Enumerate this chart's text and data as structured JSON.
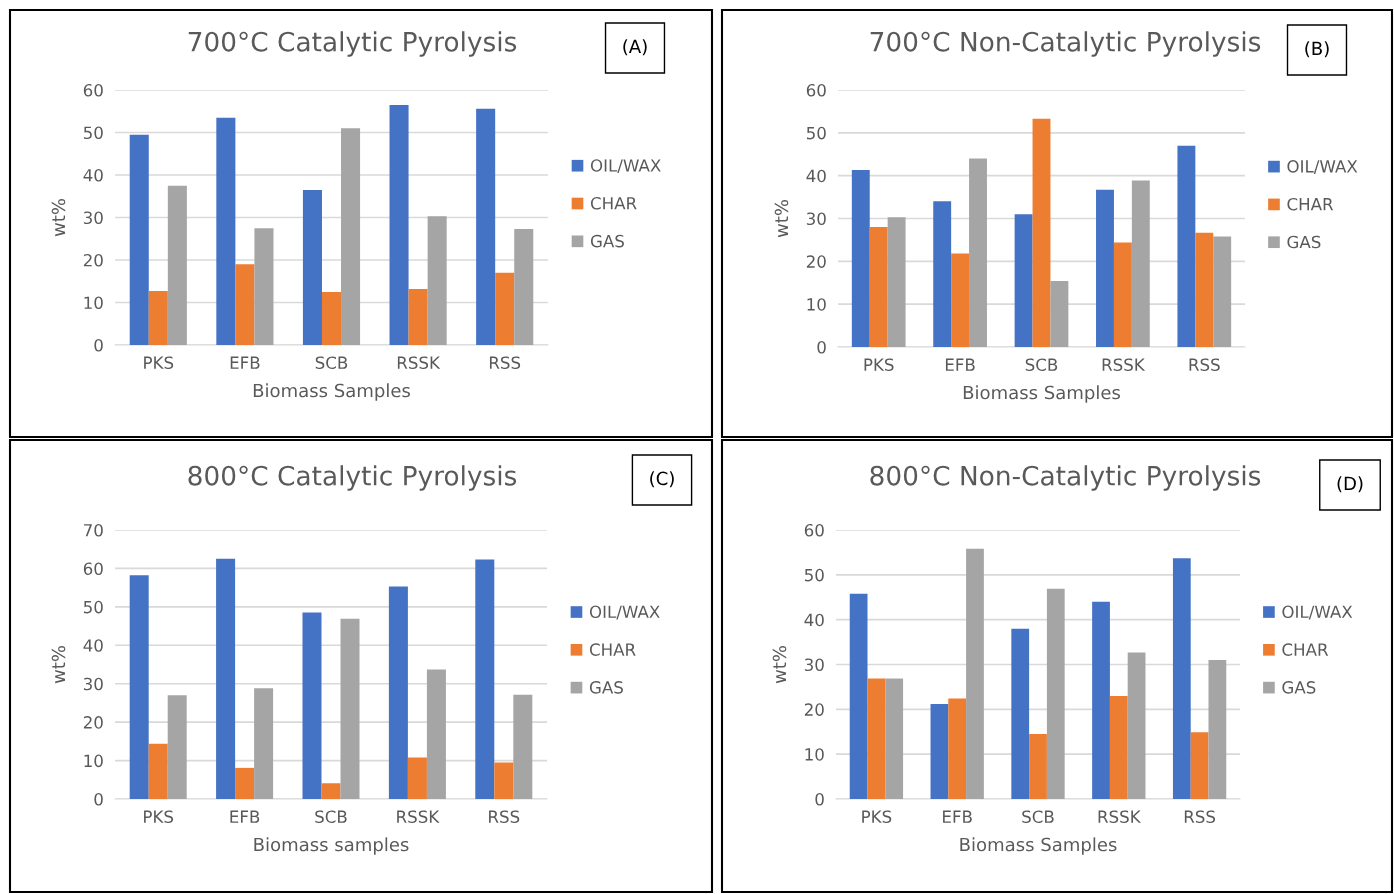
{
  "chart_data": [
    {
      "type": "bar",
      "title": "700°C Catalytic Pyrolysis",
      "xlabel": "Biomass Samples",
      "ylabel": "wt%",
      "annotations": [
        "(A)"
      ],
      "categories": [
        "PKS",
        "EFB",
        "SCB",
        "RSSK",
        "RSS"
      ],
      "series": [
        {
          "name": "OIL/WAX",
          "color": "#4472c4",
          "values": [
            49.5,
            53.5,
            36.5,
            56.5,
            55.6
          ]
        },
        {
          "name": "CHAR",
          "color": "#ed7d31",
          "values": [
            12.7,
            19,
            12.5,
            13.2,
            17
          ]
        },
        {
          "name": "GAS",
          "color": "#a5a5a5",
          "values": [
            37.5,
            27.5,
            51,
            30.3,
            27.3
          ]
        }
      ],
      "ylim": [
        0,
        60
      ],
      "yticks": [
        0,
        10,
        20,
        30,
        40,
        50,
        60
      ],
      "grid": "y",
      "legend": "right"
    },
    {
      "type": "bar",
      "title": "700°C Non-Catalytic Pyrolysis",
      "xlabel": "Biomass Samples",
      "ylabel": "wt%",
      "annotations": [
        "(B)"
      ],
      "categories": [
        "PKS",
        "EFB",
        "SCB",
        "RSSK",
        "RSS"
      ],
      "series": [
        {
          "name": "OIL/WAX",
          "color": "#4472c4",
          "values": [
            41.3,
            34,
            31,
            36.7,
            47
          ]
        },
        {
          "name": "CHAR",
          "color": "#ed7d31",
          "values": [
            28,
            21.8,
            53.3,
            24.4,
            26.7
          ]
        },
        {
          "name": "GAS",
          "color": "#a5a5a5",
          "values": [
            30.3,
            44,
            15.4,
            38.9,
            25.8
          ]
        }
      ],
      "ylim": [
        0,
        60
      ],
      "yticks": [
        0,
        10,
        20,
        30,
        40,
        50,
        60
      ],
      "grid": "y",
      "legend": "right"
    },
    {
      "type": "bar",
      "title": "800°C Catalytic Pyrolysis",
      "xlabel": "Biomass samples",
      "ylabel": "wt%",
      "annotations": [
        "(C)"
      ],
      "categories": [
        "PKS",
        "EFB",
        "SCB",
        "RSSK",
        "RSS"
      ],
      "series": [
        {
          "name": "OIL/WAX",
          "color": "#4472c4",
          "values": [
            58.2,
            62.5,
            48.5,
            55.3,
            62.3
          ]
        },
        {
          "name": "CHAR",
          "color": "#ed7d31",
          "values": [
            14.4,
            8.1,
            4.1,
            10.8,
            9.5
          ]
        },
        {
          "name": "GAS",
          "color": "#a5a5a5",
          "values": [
            27,
            28.8,
            46.9,
            33.7,
            27.1
          ]
        }
      ],
      "ylim": [
        0,
        70
      ],
      "yticks": [
        0,
        10,
        20,
        30,
        40,
        50,
        60,
        70
      ],
      "grid": "y",
      "legend": "right"
    },
    {
      "type": "bar",
      "title": "800°C Non-Catalytic Pyrolysis",
      "xlabel": "Biomass Samples",
      "ylabel": "wt%",
      "annotations": [
        "(D)"
      ],
      "categories": [
        "PKS",
        "EFB",
        "SCB",
        "RSSK",
        "RSS"
      ],
      "series": [
        {
          "name": "OIL/WAX",
          "color": "#4472c4",
          "values": [
            45.8,
            21.2,
            38,
            44,
            53.7
          ]
        },
        {
          "name": "CHAR",
          "color": "#ed7d31",
          "values": [
            26.9,
            22.4,
            14.5,
            23,
            14.9
          ]
        },
        {
          "name": "GAS",
          "color": "#a5a5a5",
          "values": [
            26.9,
            55.8,
            46.9,
            32.7,
            31
          ]
        }
      ],
      "ylim": [
        0,
        60
      ],
      "yticks": [
        0,
        10,
        20,
        30,
        40,
        50,
        60
      ],
      "grid": "y",
      "legend": "right"
    }
  ]
}
